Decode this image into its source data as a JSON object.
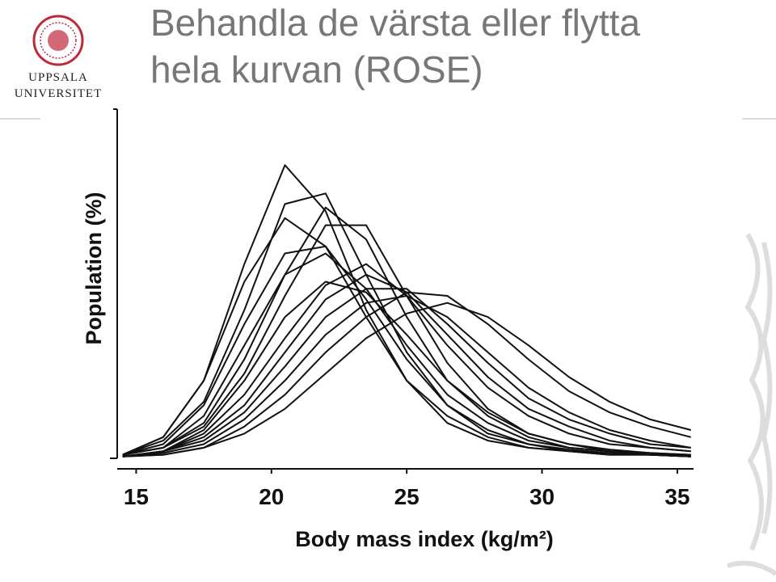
{
  "slide": {
    "title_lines": [
      "Behandla de värsta eller flytta",
      "hela kurvan (ROSE)"
    ],
    "logo_lines": [
      "UPPSALA",
      "UNIVERSITET"
    ]
  },
  "chart_data": {
    "type": "line",
    "y_label": "Population (%)",
    "x_label": "Body mass index (kg/m²)",
    "x": [
      14.5,
      16,
      17.5,
      19,
      20.5,
      22,
      23.5,
      25,
      26.5,
      28,
      29.5,
      31,
      32.5,
      34,
      35.5
    ],
    "xlim": [
      14.3,
      35.6
    ],
    "xticks": [
      15,
      20,
      25,
      30,
      35
    ],
    "ylim": [
      0,
      100
    ],
    "series": [
      {
        "color": "#111111",
        "values": [
          1,
          6,
          22,
          55,
          83,
          70,
          42,
          22,
          10,
          5,
          3,
          2,
          1,
          1,
          0.5
        ]
      },
      {
        "color": "#111111",
        "values": [
          1,
          5,
          16,
          42,
          72,
          75,
          52,
          30,
          15,
          7,
          4,
          2,
          1.5,
          1,
          0.5
        ]
      },
      {
        "color": "#111111",
        "values": [
          1,
          3,
          10,
          28,
          52,
          71,
          62,
          40,
          22,
          12,
          6,
          3,
          2,
          1,
          1
        ]
      },
      {
        "color": "#111111",
        "values": [
          1,
          3,
          9,
          24,
          46,
          66,
          66,
          46,
          27,
          14,
          7,
          4,
          2,
          1.5,
          1
        ]
      },
      {
        "color": "#111111",
        "values": [
          1,
          6,
          22,
          50,
          68,
          60,
          40,
          22,
          12,
          6,
          3,
          2,
          1,
          1,
          0.5
        ]
      },
      {
        "color": "#111111",
        "values": [
          1,
          4,
          15,
          38,
          58,
          60,
          45,
          28,
          15,
          8,
          4,
          2.5,
          1.5,
          1,
          0.5
        ]
      },
      {
        "color": "#111111",
        "values": [
          1,
          3,
          12,
          32,
          52,
          58,
          48,
          32,
          18,
          10,
          5,
          3,
          2,
          1,
          1
        ]
      },
      {
        "color": "#111111",
        "values": [
          0.5,
          2,
          7,
          18,
          34,
          49,
          55,
          46,
          32,
          20,
          12,
          7,
          4,
          3,
          2
        ]
      },
      {
        "color": "#111111",
        "values": [
          0.5,
          2,
          6,
          15,
          30,
          45,
          52,
          47,
          35,
          23,
          14,
          9,
          5,
          3,
          2
        ]
      },
      {
        "color": "#111111",
        "values": [
          0.5,
          2,
          5,
          13,
          26,
          40,
          48,
          48,
          38,
          27,
          17,
          11,
          7,
          4,
          3
        ]
      },
      {
        "color": "#111111",
        "values": [
          0.5,
          1,
          3,
          9,
          18,
          30,
          40,
          47,
          46,
          38,
          28,
          19,
          13,
          9,
          6
        ]
      },
      {
        "color": "#111111",
        "values": [
          0.5,
          1.5,
          4,
          11,
          22,
          35,
          44,
          46,
          40,
          30,
          20,
          13,
          8,
          5,
          3
        ]
      },
      {
        "color": "#111111",
        "values": [
          0.5,
          1,
          3,
          7,
          14,
          24,
          34,
          41,
          44,
          40,
          32,
          23,
          16,
          11,
          8
        ]
      },
      {
        "color": "#111111",
        "values": [
          0.5,
          2,
          8,
          22,
          40,
          50,
          47,
          35,
          22,
          13,
          7,
          4,
          2.5,
          1.5,
          1
        ]
      }
    ]
  }
}
